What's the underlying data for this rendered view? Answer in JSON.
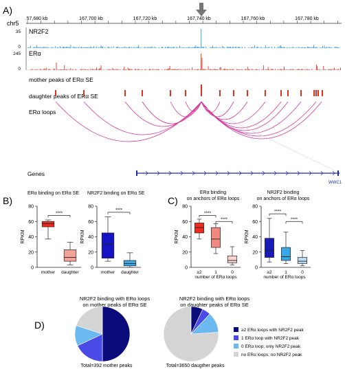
{
  "panel_a": {
    "label": "A)",
    "chrom": "chr5",
    "coords": [
      "57,680 kb",
      "167,700 kb",
      "167,720 kb",
      "167,740 kb",
      "167,760 kb",
      "167,780 kb"
    ],
    "tracks": {
      "nr2f2": {
        "name": "NR2F2",
        "max": "35",
        "min": "0",
        "color": "#2f9ad8"
      },
      "era": {
        "name": "ERα",
        "max": "245",
        "min": "0",
        "color": "#e0301e"
      },
      "mother": "mother peaks of ERα SE",
      "daughter": "daughter peaks of ERα SE",
      "loops": "ERα loops",
      "genes": "Genes",
      "gene_name": "WWC1"
    }
  },
  "panel_b": {
    "label": "B)",
    "title_left": "ERα binding on ERα SE",
    "title_right": "NR2F2 binding on ERα SE",
    "ylabel": "RPKM",
    "sig": "****",
    "left_ticks": [
      "80",
      "60",
      "40",
      "20",
      "0"
    ],
    "right_ticks": [
      "80",
      "60",
      "40",
      "20",
      "0"
    ],
    "categories": [
      "mother",
      "daughter"
    ]
  },
  "panel_c": {
    "label": "C)",
    "title_left": [
      "ERα binding",
      "on anchors of ERα loops"
    ],
    "title_right": [
      "NR2F2 binding",
      "on anchors of ERα loops"
    ],
    "ylabel": "RPKM",
    "sig": "****",
    "left_ticks": [
      "80",
      "60",
      "40",
      "20",
      "0"
    ],
    "right_ticks": [
      "80",
      "60",
      "40",
      "20",
      "0"
    ],
    "categories": [
      "≥2",
      "1",
      "0"
    ],
    "xlabel": "number of ERα loops"
  },
  "panel_d": {
    "label": "D)",
    "title_left": [
      "NR2F2 binding with ERα loops",
      "on mother peaks of ERα SE"
    ],
    "title_right": [
      "NR2F2 binding with ERα loops",
      "on daughter peaks of ERα SE"
    ],
    "total_left": "Total=392 mother peaks",
    "total_right": "Total=3650 daugther peaks",
    "legend": [
      {
        "label": "≥2 ERα loops with NR2F2 peak",
        "color": "#0a0a7a"
      },
      {
        "label": "1 ERα loop with NR2F2 peak",
        "color": "#4a4ae6"
      },
      {
        "label": "0 ERα loop; only NR2F2 peak",
        "color": "#6cb8f0"
      },
      {
        "label": "no ERα loops; no NR2F2 peak",
        "color": "#d4d4d4"
      }
    ]
  },
  "chart_data": [
    {
      "type": "box",
      "title": "ERα binding on ERα SE",
      "ylabel": "RPKM",
      "ylim": [
        0,
        80
      ],
      "categories": [
        "mother",
        "daughter"
      ],
      "boxes": [
        {
          "min": 37,
          "q1": 53,
          "median": 57,
          "q3": 60,
          "max": 62,
          "color": "#ee2b1f"
        },
        {
          "min": 3,
          "q1": 8,
          "median": 13,
          "q3": 23,
          "max": 33,
          "color": "#f4a39a"
        }
      ]
    },
    {
      "type": "box",
      "title": "NR2F2 binding on ERα SE",
      "ylabel": "RPKM",
      "ylim": [
        0,
        80
      ],
      "categories": [
        "mother",
        "daughter"
      ],
      "boxes": [
        {
          "min": 8,
          "q1": 12,
          "median": 30,
          "q3": 45,
          "max": 66,
          "color": "#1414c4"
        },
        {
          "min": 0,
          "q1": 2,
          "median": 5,
          "q3": 9,
          "max": 19,
          "color": "#3ba7e6"
        }
      ]
    },
    {
      "type": "box",
      "title": "ERα binding on anchors of ERα loops",
      "ylabel": "RPKM",
      "xlabel": "number of ERα loops",
      "ylim": [
        0,
        80
      ],
      "categories": [
        "≥2",
        "1",
        "0"
      ],
      "boxes": [
        {
          "min": 37,
          "q1": 45,
          "median": 52,
          "q3": 58,
          "max": 63,
          "color": "#ee2b1f"
        },
        {
          "min": 18,
          "q1": 26,
          "median": 37,
          "q3": 52,
          "max": 57,
          "color": "#f08a80"
        },
        {
          "min": 3,
          "q1": 6,
          "median": 9,
          "q3": 15,
          "max": 27,
          "color": "#f9d3cc"
        }
      ]
    },
    {
      "type": "box",
      "title": "NR2F2 binding on anchors of ERα loops",
      "ylabel": "RPKM",
      "xlabel": "number of ERα loops",
      "ylim": [
        0,
        80
      ],
      "categories": [
        "≥2",
        "1",
        "0"
      ],
      "boxes": [
        {
          "min": 7,
          "q1": 13,
          "median": 22,
          "q3": 38,
          "max": 64,
          "color": "#1a1ab8"
        },
        {
          "min": 5,
          "q1": 9,
          "median": 14,
          "q3": 26,
          "max": 46,
          "color": "#3ba7e6"
        },
        {
          "min": 2,
          "q1": 5,
          "median": 8,
          "q3": 13,
          "max": 22,
          "color": "#b9dcf5"
        }
      ]
    },
    {
      "type": "pie",
      "title": "NR2F2 binding with ERα loops on mother peaks of ERα SE",
      "categories": [
        "≥2 ERα loops with NR2F2 peak",
        "1 ERα loop with NR2F2 peak",
        "0 ERα loop; only NR2F2 peak",
        "no ERα loops; no NR2F2 peak"
      ],
      "values": [
        50,
        18,
        12,
        20
      ]
    },
    {
      "type": "pie",
      "title": "NR2F2 binding with ERα loops on daughter peaks of ERα SE",
      "categories": [
        "≥2 ERα loops with NR2F2 peak",
        "1 ERα loop with NR2F2 peak",
        "0 ERα loop; only NR2F2 peak",
        "no ERα loops; no NR2F2 peak"
      ],
      "values": [
        7,
        5,
        12,
        76
      ]
    }
  ]
}
